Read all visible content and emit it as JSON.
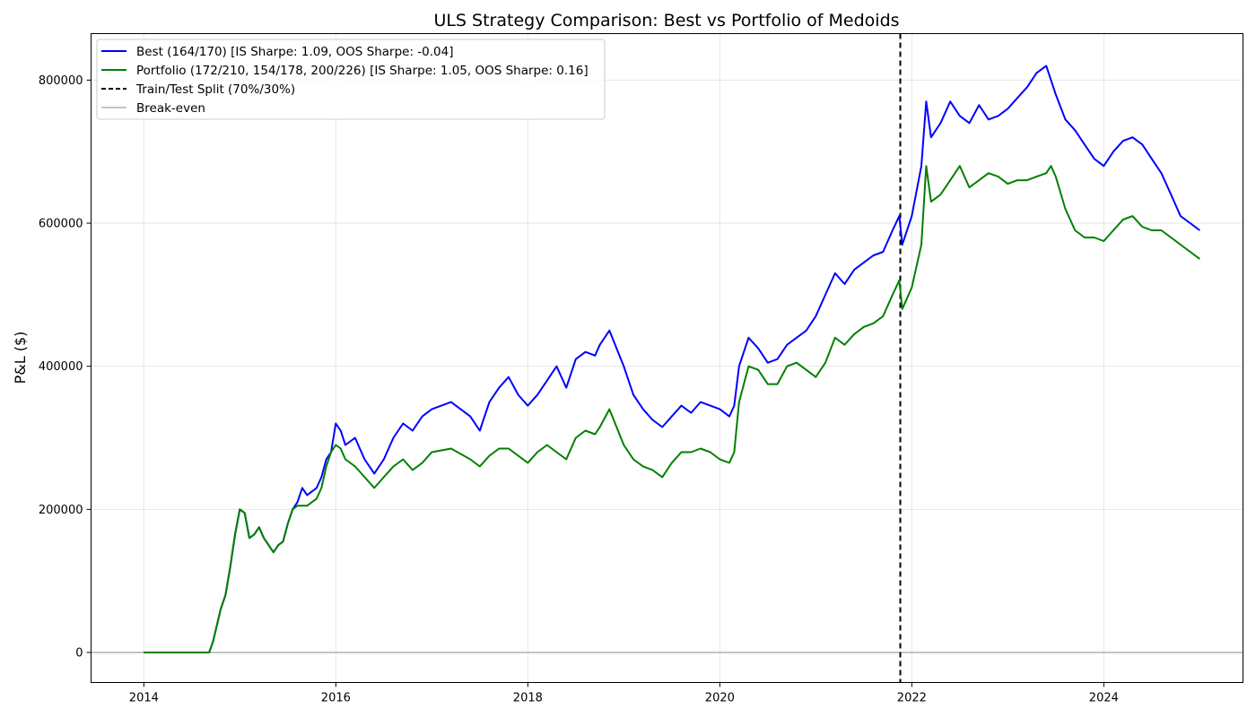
{
  "chart_data": {
    "type": "line",
    "title": "ULS Strategy Comparison: Best vs Portfolio of Medoids",
    "xlabel": "",
    "ylabel": "P&L ($)",
    "xlim": [
      2013.45,
      2025.45
    ],
    "ylim": [
      -42000,
      865000
    ],
    "x_ticks": [
      2014,
      2016,
      2018,
      2020,
      2022,
      2024
    ],
    "x_tick_labels": [
      "2014",
      "2016",
      "2018",
      "2020",
      "2022",
      "2024"
    ],
    "y_ticks": [
      0,
      200000,
      400000,
      600000,
      800000
    ],
    "y_tick_labels": [
      "0",
      "200000",
      "400000",
      "600000",
      "800000"
    ],
    "grid": true,
    "legend_position": "upper-left",
    "split_x": 2021.88,
    "breakeven_y": 0,
    "series": [
      {
        "name": "Best (164/170) [IS Sharpe: 1.09, OOS Sharpe: -0.04]",
        "color": "#0000ff",
        "style": "solid",
        "x": [
          2014.0,
          2014.68,
          2014.72,
          2014.8,
          2014.85,
          2014.9,
          2014.95,
          2015.0,
          2015.05,
          2015.1,
          2015.15,
          2015.2,
          2015.25,
          2015.3,
          2015.35,
          2015.4,
          2015.45,
          2015.5,
          2015.55,
          2015.6,
          2015.65,
          2015.7,
          2015.75,
          2015.8,
          2015.85,
          2015.9,
          2015.95,
          2016.0,
          2016.05,
          2016.1,
          2016.2,
          2016.3,
          2016.4,
          2016.5,
          2016.6,
          2016.7,
          2016.8,
          2016.9,
          2017.0,
          2017.2,
          2017.4,
          2017.5,
          2017.6,
          2017.7,
          2017.8,
          2017.9,
          2018.0,
          2018.1,
          2018.2,
          2018.3,
          2018.4,
          2018.5,
          2018.6,
          2018.7,
          2018.75,
          2018.85,
          2019.0,
          2019.1,
          2019.2,
          2019.3,
          2019.4,
          2019.5,
          2019.6,
          2019.7,
          2019.8,
          2019.9,
          2020.0,
          2020.1,
          2020.15,
          2020.2,
          2020.3,
          2020.4,
          2020.5,
          2020.6,
          2020.7,
          2020.8,
          2020.9,
          2021.0,
          2021.1,
          2021.2,
          2021.3,
          2021.4,
          2021.5,
          2021.6,
          2021.7,
          2021.8,
          2021.87,
          2021.9,
          2022.0,
          2022.1,
          2022.15,
          2022.2,
          2022.3,
          2022.4,
          2022.5,
          2022.6,
          2022.7,
          2022.8,
          2022.9,
          2023.0,
          2023.1,
          2023.2,
          2023.3,
          2023.4,
          2023.45,
          2023.5,
          2023.6,
          2023.7,
          2023.8,
          2023.9,
          2024.0,
          2024.1,
          2024.2,
          2024.3,
          2024.4,
          2024.5,
          2024.6,
          2024.7,
          2024.8,
          2024.9,
          2025.0
        ],
        "y": [
          0,
          0,
          15000,
          60000,
          80000,
          120000,
          165000,
          200000,
          195000,
          160000,
          165000,
          175000,
          160000,
          150000,
          140000,
          150000,
          155000,
          180000,
          200000,
          210000,
          230000,
          220000,
          225000,
          230000,
          245000,
          270000,
          280000,
          320000,
          310000,
          290000,
          300000,
          270000,
          250000,
          270000,
          300000,
          320000,
          310000,
          330000,
          340000,
          350000,
          330000,
          310000,
          350000,
          370000,
          385000,
          360000,
          345000,
          360000,
          380000,
          400000,
          370000,
          410000,
          420000,
          415000,
          430000,
          450000,
          400000,
          360000,
          340000,
          325000,
          315000,
          330000,
          345000,
          335000,
          350000,
          345000,
          340000,
          330000,
          345000,
          400000,
          440000,
          425000,
          405000,
          410000,
          430000,
          440000,
          450000,
          470000,
          500000,
          530000,
          515000,
          535000,
          545000,
          555000,
          560000,
          590000,
          610000,
          570000,
          610000,
          680000,
          770000,
          720000,
          740000,
          770000,
          750000,
          740000,
          765000,
          745000,
          750000,
          760000,
          775000,
          790000,
          810000,
          820000,
          800000,
          780000,
          745000,
          730000,
          710000,
          690000,
          680000,
          700000,
          715000,
          720000,
          710000,
          690000,
          670000,
          640000,
          610000,
          600000,
          590000
        ]
      },
      {
        "name": "Portfolio (172/210, 154/178, 200/226) [IS Sharpe: 1.05, OOS Sharpe: 0.16]",
        "color": "#008000",
        "style": "solid",
        "x": [
          2014.0,
          2014.68,
          2014.72,
          2014.8,
          2014.85,
          2014.9,
          2014.95,
          2015.0,
          2015.05,
          2015.1,
          2015.15,
          2015.2,
          2015.25,
          2015.3,
          2015.35,
          2015.4,
          2015.45,
          2015.5,
          2015.55,
          2015.6,
          2015.65,
          2015.7,
          2015.75,
          2015.8,
          2015.85,
          2015.9,
          2015.95,
          2016.0,
          2016.05,
          2016.1,
          2016.2,
          2016.3,
          2016.4,
          2016.5,
          2016.6,
          2016.7,
          2016.8,
          2016.9,
          2017.0,
          2017.2,
          2017.4,
          2017.5,
          2017.6,
          2017.7,
          2017.8,
          2017.9,
          2018.0,
          2018.1,
          2018.2,
          2018.3,
          2018.4,
          2018.5,
          2018.6,
          2018.7,
          2018.75,
          2018.85,
          2019.0,
          2019.1,
          2019.2,
          2019.3,
          2019.4,
          2019.5,
          2019.6,
          2019.7,
          2019.8,
          2019.9,
          2020.0,
          2020.1,
          2020.15,
          2020.2,
          2020.3,
          2020.4,
          2020.5,
          2020.6,
          2020.7,
          2020.8,
          2020.9,
          2021.0,
          2021.1,
          2021.2,
          2021.3,
          2021.4,
          2021.5,
          2021.6,
          2021.7,
          2021.8,
          2021.87,
          2021.9,
          2022.0,
          2022.1,
          2022.15,
          2022.2,
          2022.3,
          2022.4,
          2022.5,
          2022.6,
          2022.7,
          2022.8,
          2022.9,
          2023.0,
          2023.1,
          2023.2,
          2023.3,
          2023.4,
          2023.45,
          2023.5,
          2023.6,
          2023.7,
          2023.8,
          2023.9,
          2024.0,
          2024.1,
          2024.2,
          2024.3,
          2024.4,
          2024.5,
          2024.6,
          2024.7,
          2024.8,
          2024.9,
          2025.0
        ],
        "y": [
          0,
          0,
          15000,
          60000,
          80000,
          120000,
          165000,
          200000,
          195000,
          160000,
          165000,
          175000,
          160000,
          150000,
          140000,
          150000,
          155000,
          180000,
          200000,
          205000,
          205000,
          205000,
          210000,
          215000,
          230000,
          260000,
          280000,
          290000,
          285000,
          270000,
          260000,
          245000,
          230000,
          245000,
          260000,
          270000,
          255000,
          265000,
          280000,
          285000,
          270000,
          260000,
          275000,
          285000,
          285000,
          275000,
          265000,
          280000,
          290000,
          280000,
          270000,
          300000,
          310000,
          305000,
          315000,
          340000,
          290000,
          270000,
          260000,
          255000,
          245000,
          265000,
          280000,
          280000,
          285000,
          280000,
          270000,
          265000,
          280000,
          350000,
          400000,
          395000,
          375000,
          375000,
          400000,
          405000,
          395000,
          385000,
          405000,
          440000,
          430000,
          445000,
          455000,
          460000,
          470000,
          500000,
          520000,
          480000,
          510000,
          570000,
          680000,
          630000,
          640000,
          660000,
          680000,
          650000,
          660000,
          670000,
          665000,
          655000,
          660000,
          660000,
          665000,
          670000,
          680000,
          665000,
          620000,
          590000,
          580000,
          580000,
          575000,
          590000,
          605000,
          610000,
          595000,
          590000,
          590000,
          580000,
          570000,
          560000,
          550000
        ]
      },
      {
        "name": "Train/Test Split (70%/30%)",
        "color": "#000000",
        "style": "dashed"
      },
      {
        "name": "Break-even",
        "color": "#b0b0b0",
        "style": "solid"
      }
    ]
  }
}
